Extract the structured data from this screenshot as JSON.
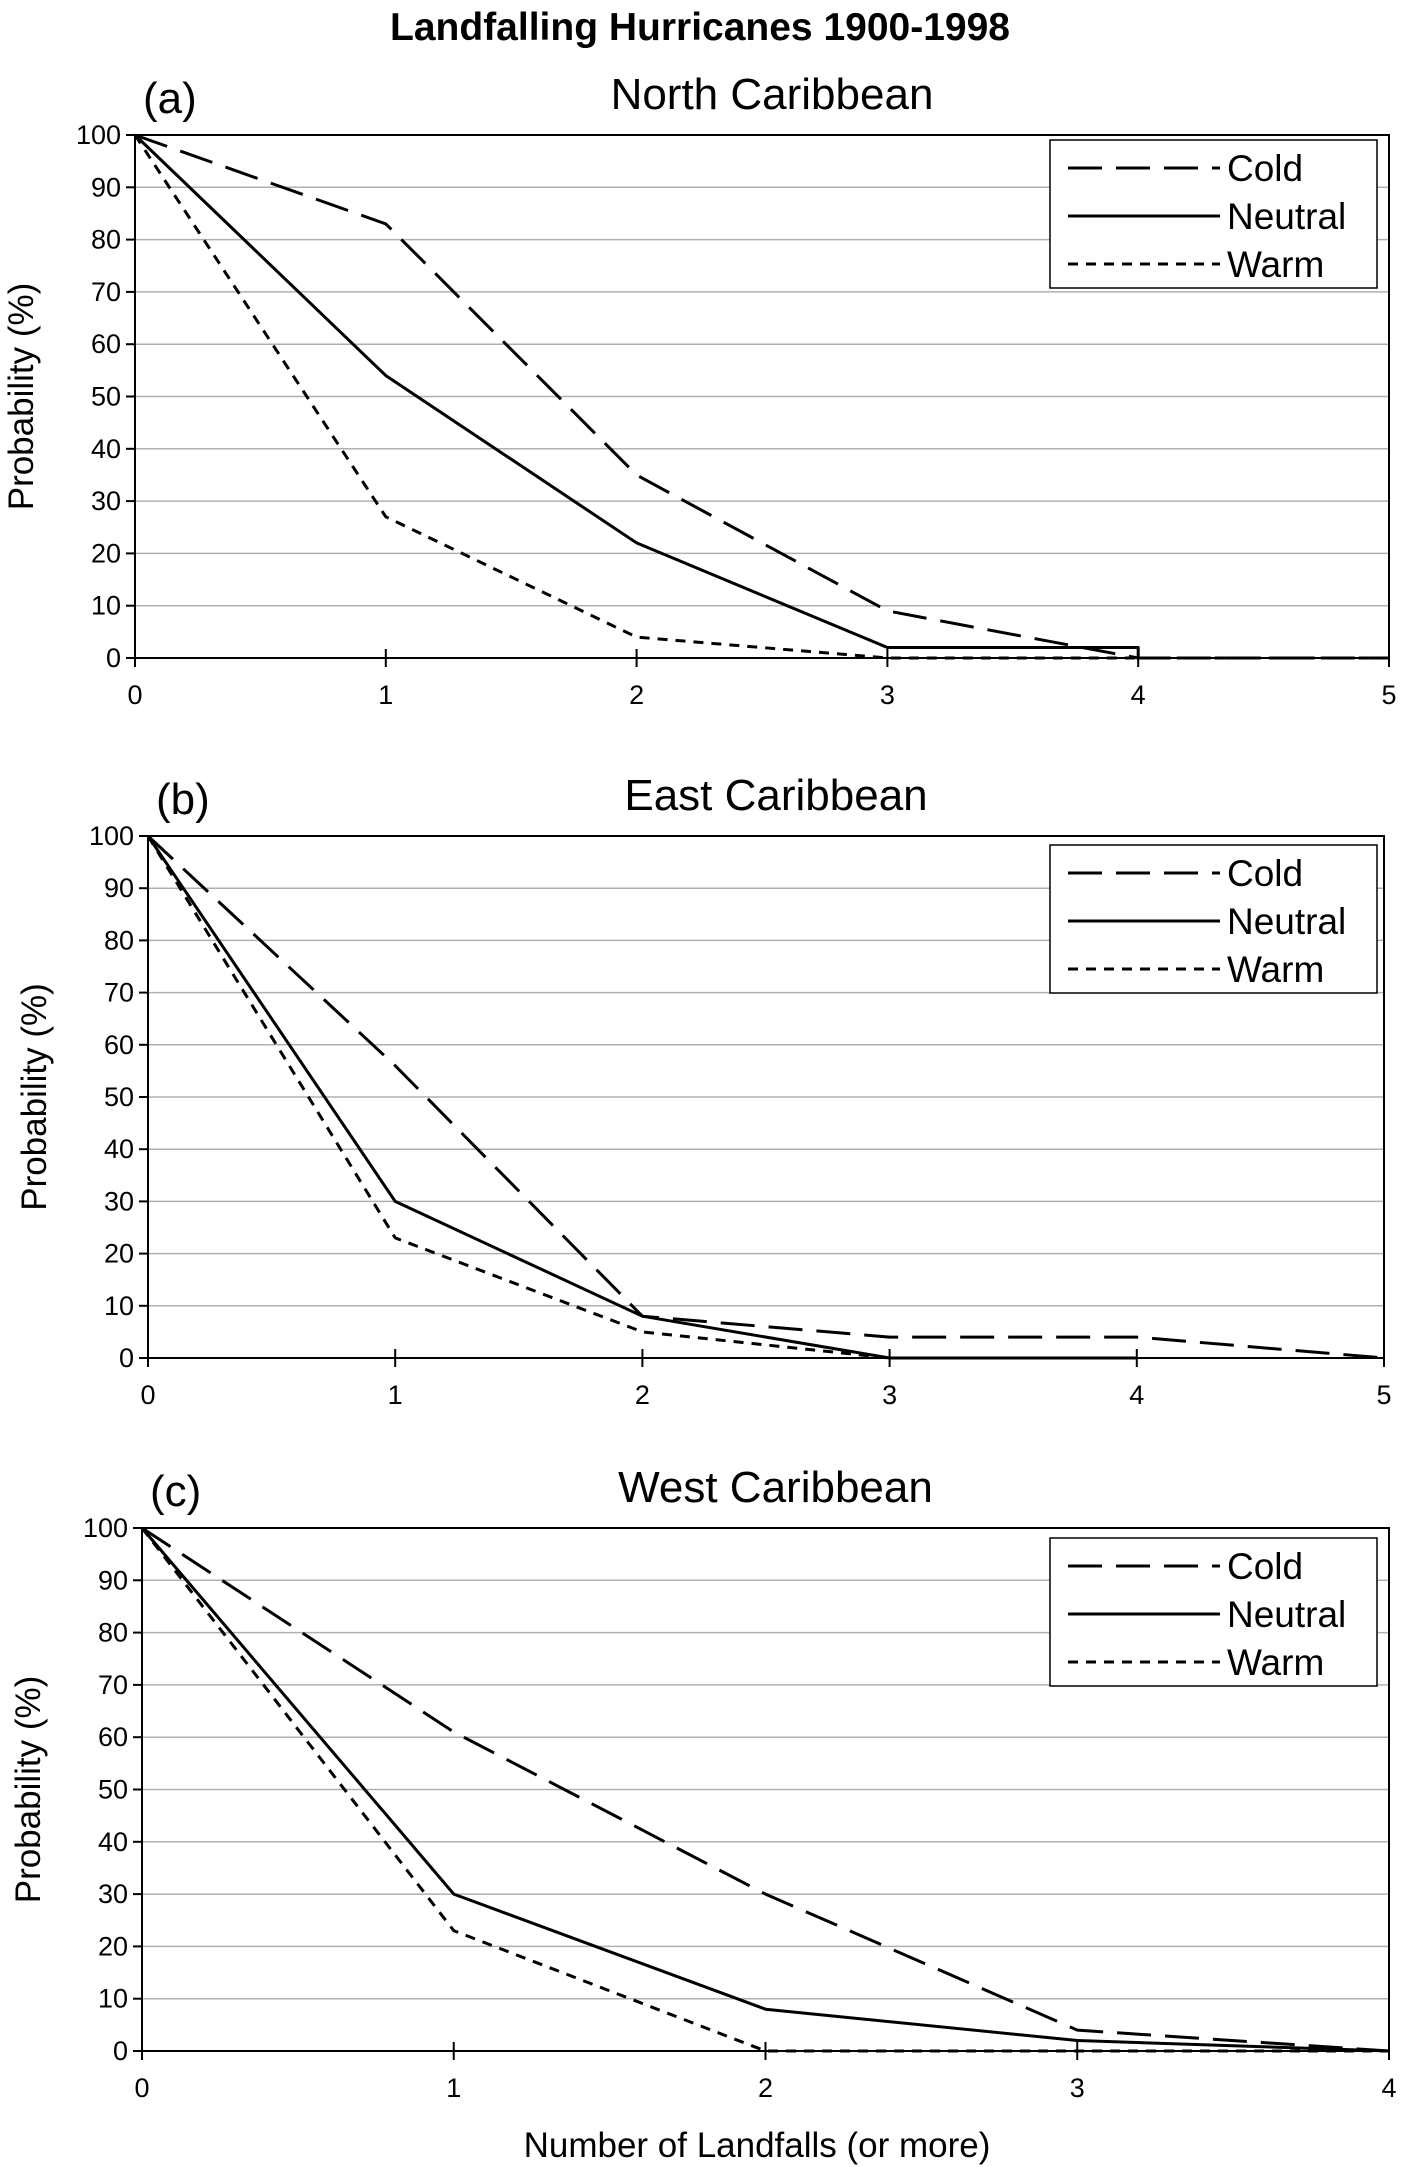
{
  "figure_title": "Landfalling Hurricanes 1900-1998",
  "xlabel": "Number of Landfalls (or more)",
  "ylabel": "Probability (%)",
  "legend": [
    {
      "name": "Cold",
      "style": "dashed"
    },
    {
      "name": "Neutral",
      "style": "solid"
    },
    {
      "name": "Warm",
      "style": "dotted"
    }
  ],
  "colors": {
    "lines": "#000000",
    "grid": "#b0b0b0",
    "background": "#ffffff"
  },
  "chart_data": [
    {
      "type": "line",
      "panel_label": "(a)",
      "title": "North Caribbean",
      "xlabel": "",
      "ylabel": "Probability (%)",
      "xlim": [
        0,
        5
      ],
      "ylim": [
        0,
        100
      ],
      "x_ticks": [
        0,
        1,
        2,
        3,
        4,
        5
      ],
      "y_ticks": [
        0,
        10,
        20,
        30,
        40,
        50,
        60,
        70,
        80,
        90,
        100
      ],
      "grid": "horizontal",
      "legend_position": "top-right",
      "series": [
        {
          "name": "Cold",
          "style": "dashed",
          "points": [
            [
              0,
              100
            ],
            [
              1,
              83
            ],
            [
              2,
              35
            ],
            [
              3,
              9
            ],
            [
              4,
              0
            ],
            [
              5,
              0
            ]
          ]
        },
        {
          "name": "Neutral",
          "style": "solid",
          "points": [
            [
              0,
              100
            ],
            [
              1,
              54
            ],
            [
              2,
              22
            ],
            [
              3,
              2
            ],
            [
              4,
              2
            ],
            [
              4,
              0
            ]
          ]
        },
        {
          "name": "Warm",
          "style": "dotted",
          "points": [
            [
              0,
              100
            ],
            [
              1,
              27
            ],
            [
              2,
              4
            ],
            [
              3,
              0
            ],
            [
              4,
              0
            ],
            [
              5,
              0
            ]
          ]
        }
      ]
    },
    {
      "type": "line",
      "panel_label": "(b)",
      "title": "East Caribbean",
      "xlabel": "",
      "ylabel": "Probability (%)",
      "xlim": [
        0,
        5
      ],
      "ylim": [
        0,
        100
      ],
      "x_ticks": [
        0,
        1,
        2,
        3,
        4,
        5
      ],
      "y_ticks": [
        0,
        10,
        20,
        30,
        40,
        50,
        60,
        70,
        80,
        90,
        100
      ],
      "grid": "horizontal",
      "legend_position": "top-right",
      "series": [
        {
          "name": "Cold",
          "style": "dashed",
          "points": [
            [
              0,
              100
            ],
            [
              1,
              56
            ],
            [
              2,
              8
            ],
            [
              3,
              4
            ],
            [
              4,
              4
            ],
            [
              5,
              0
            ]
          ]
        },
        {
          "name": "Neutral",
          "style": "solid",
          "points": [
            [
              0,
              100
            ],
            [
              1,
              30
            ],
            [
              2,
              8
            ],
            [
              3,
              0
            ],
            [
              4,
              0
            ]
          ]
        },
        {
          "name": "Warm",
          "style": "dotted",
          "points": [
            [
              0,
              100
            ],
            [
              1,
              23
            ],
            [
              2,
              5
            ],
            [
              3,
              0
            ],
            [
              4,
              0
            ]
          ]
        }
      ]
    },
    {
      "type": "line",
      "panel_label": "(c)",
      "title": "West Caribbean",
      "xlabel": "Number of Landfalls (or more)",
      "ylabel": "Probability (%)",
      "xlim": [
        0,
        4
      ],
      "ylim": [
        0,
        100
      ],
      "x_ticks": [
        0,
        1,
        2,
        3,
        4
      ],
      "y_ticks": [
        0,
        10,
        20,
        30,
        40,
        50,
        60,
        70,
        80,
        90,
        100
      ],
      "grid": "horizontal",
      "legend_position": "top-right",
      "series": [
        {
          "name": "Cold",
          "style": "dashed",
          "points": [
            [
              0,
              100
            ],
            [
              1,
              61
            ],
            [
              2,
              30
            ],
            [
              3,
              4
            ],
            [
              4,
              0
            ]
          ]
        },
        {
          "name": "Neutral",
          "style": "solid",
          "points": [
            [
              0,
              100
            ],
            [
              1,
              30
            ],
            [
              2,
              8
            ],
            [
              3,
              2
            ],
            [
              4,
              0
            ]
          ]
        },
        {
          "name": "Warm",
          "style": "dotted",
          "points": [
            [
              0,
              100
            ],
            [
              1,
              23
            ],
            [
              2,
              0
            ],
            [
              3,
              0
            ],
            [
              4,
              0
            ]
          ]
        }
      ]
    }
  ]
}
